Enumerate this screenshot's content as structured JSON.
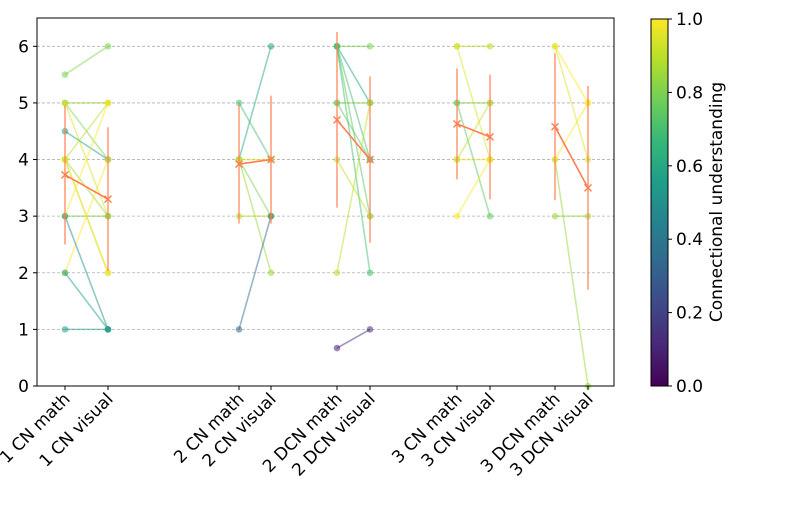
{
  "chart_data": {
    "type": "line",
    "title": "",
    "xlabel": "",
    "ylabel": "",
    "ylim": [
      0,
      6.5
    ],
    "yticks": [
      "0",
      "1",
      "2",
      "3",
      "4",
      "5",
      "6"
    ],
    "grid": "horizontal dashed",
    "categories": [
      "1 CN math",
      "1 CN visual",
      "2 CN math",
      "2 CN visual",
      "2 DCN math",
      "2 DCN visual",
      "3 CN math",
      "3 CN visual",
      "3 DCN math",
      "3 DCN visual"
    ],
    "colorbar": {
      "label": "Connectional understanding",
      "range": [
        0.0,
        1.0
      ],
      "ticks": [
        "0.0",
        "0.2",
        "0.4",
        "0.6",
        "0.8",
        "1.0"
      ],
      "colormap": [
        "#440154",
        "#482878",
        "#3e4989",
        "#31688e",
        "#26828e",
        "#1f9e89",
        "#35b779",
        "#6ece58",
        "#b5de2b",
        "#fde725"
      ]
    },
    "mean_color": "#ff7f50",
    "pairs": [
      {
        "categories": [
          "1 CN math",
          "1 CN visual"
        ],
        "lines": [
          {
            "math": 5.5,
            "visual": 6,
            "c": 0.8
          },
          {
            "math": 5,
            "visual": 5,
            "c": 0.85
          },
          {
            "math": 5,
            "visual": 4,
            "c": 0.8
          },
          {
            "math": 5,
            "visual": 3,
            "c": 0.95
          },
          {
            "math": 4.5,
            "visual": 4,
            "c": 0.55
          },
          {
            "math": 4,
            "visual": 5,
            "c": 0.9
          },
          {
            "math": 4,
            "visual": 2,
            "c": 0.9
          },
          {
            "math": 4,
            "visual": 3,
            "c": 0.85
          },
          {
            "math": 3,
            "visual": 3,
            "c": 0.8
          },
          {
            "math": 3,
            "visual": 5,
            "c": 1.0
          },
          {
            "math": 2,
            "visual": 4,
            "c": 1.0
          },
          {
            "math": 2,
            "visual": 1,
            "c": 0.55
          },
          {
            "math": 3,
            "visual": 1,
            "c": 0.5
          },
          {
            "math": 1,
            "visual": 1,
            "c": 0.55
          },
          {
            "math": 4,
            "visual": 2,
            "c": 1.0
          }
        ],
        "mean": {
          "math": 3.73,
          "visual": 3.3
        },
        "std": {
          "math": 1.23,
          "visual": 1.27
        }
      },
      {
        "categories": [
          "2 CN math",
          "2 CN visual"
        ],
        "lines": [
          {
            "math": 5,
            "visual": 4,
            "c": 0.7
          },
          {
            "math": 4,
            "visual": 6,
            "c": 0.6
          },
          {
            "math": 4,
            "visual": 3,
            "c": 0.8
          },
          {
            "math": 4,
            "visual": 2,
            "c": 0.85
          },
          {
            "math": 4,
            "visual": 4,
            "c": 0.95
          },
          {
            "math": 3,
            "visual": 3,
            "c": 0.9
          },
          {
            "math": 1,
            "visual": 3,
            "c": 0.35
          }
        ],
        "mean": {
          "math": 3.92,
          "visual": 4.0
        },
        "std": {
          "math": 1.05,
          "visual": 1.13
        }
      },
      {
        "categories": [
          "2 DCN math",
          "2 DCN visual"
        ],
        "lines": [
          {
            "math": 6,
            "visual": 6,
            "c": 0.8
          },
          {
            "math": 6,
            "visual": 5,
            "c": 0.6
          },
          {
            "math": 6,
            "visual": 4,
            "c": 0.7
          },
          {
            "math": 6,
            "visual": 3,
            "c": 0.75
          },
          {
            "math": 6,
            "visual": 2,
            "c": 0.7
          },
          {
            "math": 5,
            "visual": 5,
            "c": 0.8
          },
          {
            "math": 5,
            "visual": 4,
            "c": 0.75
          },
          {
            "math": 4,
            "visual": 3,
            "c": 0.9
          },
          {
            "math": 2,
            "visual": 5,
            "c": 0.9
          },
          {
            "math": 0.67,
            "visual": 1,
            "c": 0.1
          }
        ],
        "mean": {
          "math": 4.7,
          "visual": 4.0
        },
        "std": {
          "math": 1.55,
          "visual": 1.47
        }
      },
      {
        "categories": [
          "3 CN math",
          "3 CN visual"
        ],
        "lines": [
          {
            "math": 6,
            "visual": 6,
            "c": 0.9
          },
          {
            "math": 5,
            "visual": 5,
            "c": 0.8
          },
          {
            "math": 5,
            "visual": 3,
            "c": 0.75
          },
          {
            "math": 4,
            "visual": 4,
            "c": 1.0
          },
          {
            "math": 4,
            "visual": 5,
            "c": 0.9
          },
          {
            "math": 3,
            "visual": 4,
            "c": 1.0
          },
          {
            "math": 6,
            "visual": 4,
            "c": 0.95
          }
        ],
        "mean": {
          "math": 4.63,
          "visual": 4.4
        },
        "std": {
          "math": 0.98,
          "visual": 1.1
        }
      },
      {
        "categories": [
          "3 DCN math",
          "3 DCN visual"
        ],
        "lines": [
          {
            "math": 6,
            "visual": 5,
            "c": 1.0
          },
          {
            "math": 6,
            "visual": 4,
            "c": 0.95
          },
          {
            "math": 4,
            "visual": 0,
            "c": 0.85
          },
          {
            "math": 3,
            "visual": 3,
            "c": 0.85
          },
          {
            "math": 4,
            "visual": 5,
            "c": 1.0
          }
        ],
        "mean": {
          "math": 4.58,
          "visual": 3.5
        },
        "std": {
          "math": 1.3,
          "visual": 1.8
        }
      }
    ]
  }
}
